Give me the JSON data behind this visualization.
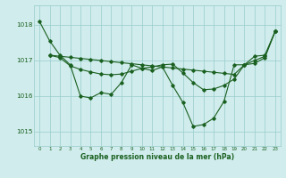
{
  "title": "Graphe pression niveau de la mer (hPa)",
  "bg_color": "#d0ecec",
  "grid_color": "#98cccc",
  "line_color": "#1a6020",
  "xlim": [
    -0.5,
    23.5
  ],
  "ylim": [
    1014.6,
    1018.55
  ],
  "yticks": [
    1015,
    1016,
    1017,
    1018
  ],
  "xticks": [
    0,
    1,
    2,
    3,
    4,
    5,
    6,
    7,
    8,
    9,
    10,
    11,
    12,
    13,
    14,
    15,
    16,
    17,
    18,
    19,
    20,
    21,
    22,
    23
  ],
  "series": [
    {
      "x": [
        0,
        1,
        2,
        3,
        4,
        5,
        6,
        7,
        8,
        9,
        10,
        11,
        12,
        13,
        14,
        15,
        16,
        17,
        18,
        19,
        20,
        21,
        22,
        23
      ],
      "y": [
        1018.1,
        1017.55,
        1017.15,
        1016.88,
        1016.0,
        1015.95,
        1016.1,
        1016.05,
        1016.38,
        1016.88,
        1016.78,
        1016.72,
        1016.82,
        1016.3,
        1015.82,
        1015.15,
        1015.2,
        1015.38,
        1015.85,
        1016.88,
        1016.88,
        1017.0,
        1017.12,
        1017.82
      ]
    },
    {
      "x": [
        1,
        2,
        3,
        4,
        5,
        6,
        7,
        8,
        9,
        10,
        11,
        12,
        13,
        14,
        15,
        16,
        17,
        18,
        19,
        20,
        21,
        22,
        23
      ],
      "y": [
        1017.15,
        1017.12,
        1017.09,
        1017.06,
        1017.03,
        1017.0,
        1016.97,
        1016.94,
        1016.91,
        1016.88,
        1016.85,
        1016.82,
        1016.79,
        1016.76,
        1016.73,
        1016.7,
        1016.67,
        1016.64,
        1016.61,
        1016.88,
        1017.12,
        1017.15,
        1017.82
      ]
    },
    {
      "x": [
        1,
        2,
        3,
        4,
        5,
        6,
        7,
        8,
        9,
        10,
        11,
        12,
        13,
        14,
        15,
        16,
        17,
        18,
        19,
        20,
        21,
        22,
        23
      ],
      "y": [
        1017.15,
        1017.08,
        1016.85,
        1016.75,
        1016.68,
        1016.62,
        1016.6,
        1016.62,
        1016.7,
        1016.78,
        1016.82,
        1016.88,
        1016.9,
        1016.65,
        1016.38,
        1016.18,
        1016.2,
        1016.3,
        1016.48,
        1016.88,
        1016.92,
        1017.08,
        1017.82
      ]
    }
  ]
}
